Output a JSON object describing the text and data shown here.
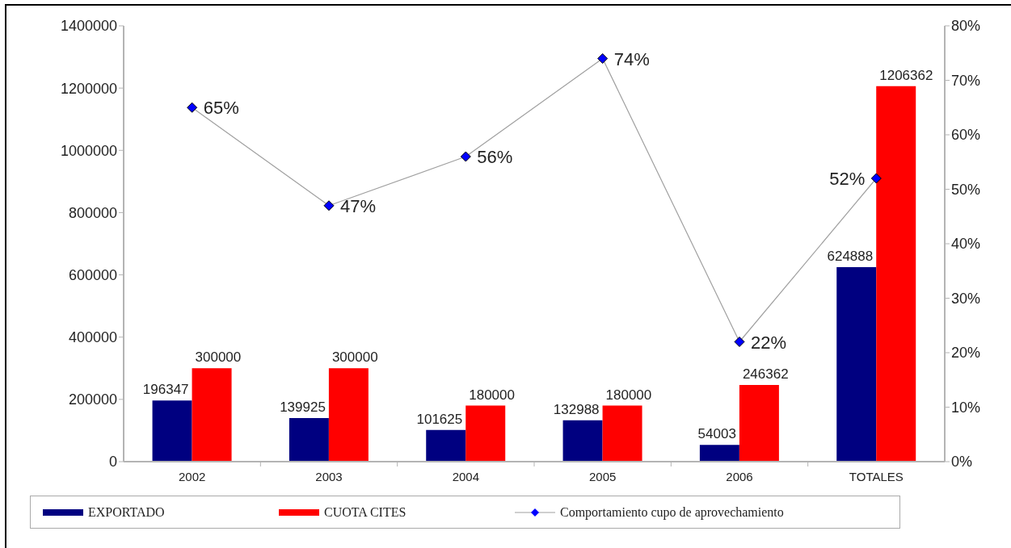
{
  "chart_data": {
    "type": "bar",
    "categories": [
      "2002",
      "2003",
      "2004",
      "2005",
      "2006",
      "TOTALES"
    ],
    "series": [
      {
        "name": "EXPORTADO",
        "color": "#000080",
        "values": [
          196347,
          139925,
          101625,
          132988,
          54003,
          624888
        ]
      },
      {
        "name": "CUOTA CITES",
        "color": "#ff0000",
        "values": [
          300000,
          300000,
          180000,
          180000,
          246362,
          1206362
        ]
      },
      {
        "name": "Comportamiento cupo de aprovechamiento",
        "type": "line",
        "axis": "y2",
        "color": "#a0a0a0",
        "values": [
          65,
          47,
          56,
          74,
          22,
          52
        ],
        "value_labels": [
          "65%",
          "47%",
          "56%",
          "74%",
          "22%",
          "52%"
        ]
      }
    ],
    "ylim": [
      0,
      1400000
    ],
    "yticks": [
      0,
      200000,
      400000,
      600000,
      800000,
      1000000,
      1200000,
      1400000
    ],
    "y2lim": [
      0,
      80
    ],
    "y2ticks": [
      {
        "value": 0,
        "label": "0%"
      },
      {
        "value": 10,
        "label": "10%"
      },
      {
        "value": 20,
        "label": "20%"
      },
      {
        "value": 30,
        "label": "30%"
      },
      {
        "value": 40,
        "label": "40%"
      },
      {
        "value": 50,
        "label": "50%"
      },
      {
        "value": 60,
        "label": "60%"
      },
      {
        "value": 70,
        "label": "70%"
      },
      {
        "value": 80,
        "label": "80%"
      }
    ],
    "data_labels": true,
    "legend": "bottom",
    "marker": "diamond"
  }
}
